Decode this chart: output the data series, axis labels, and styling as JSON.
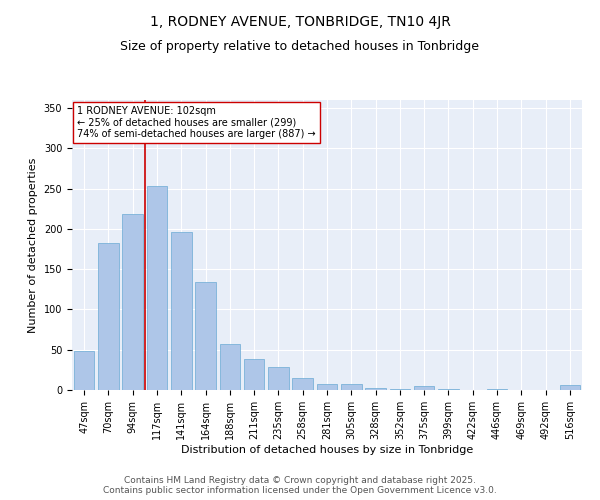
{
  "title": "1, RODNEY AVENUE, TONBRIDGE, TN10 4JR",
  "subtitle": "Size of property relative to detached houses in Tonbridge",
  "xlabel": "Distribution of detached houses by size in Tonbridge",
  "ylabel": "Number of detached properties",
  "categories": [
    "47sqm",
    "70sqm",
    "94sqm",
    "117sqm",
    "141sqm",
    "164sqm",
    "188sqm",
    "211sqm",
    "235sqm",
    "258sqm",
    "281sqm",
    "305sqm",
    "328sqm",
    "352sqm",
    "375sqm",
    "399sqm",
    "422sqm",
    "446sqm",
    "469sqm",
    "492sqm",
    "516sqm"
  ],
  "values": [
    48,
    183,
    218,
    253,
    196,
    134,
    57,
    39,
    28,
    15,
    8,
    8,
    3,
    1,
    5,
    1,
    0,
    1,
    0,
    0,
    6
  ],
  "bar_color": "#aec6e8",
  "bar_edge_color": "#6aaad4",
  "property_line_x": 2.5,
  "property_line_label": "1 RODNEY AVENUE: 102sqm",
  "annotation_line1": "← 25% of detached houses are smaller (299)",
  "annotation_line2": "74% of semi-detached houses are larger (887) →",
  "vline_color": "#cc0000",
  "ylim": [
    0,
    360
  ],
  "yticks": [
    0,
    50,
    100,
    150,
    200,
    250,
    300,
    350
  ],
  "background_color": "#e8eef8",
  "footer_line1": "Contains HM Land Registry data © Crown copyright and database right 2025.",
  "footer_line2": "Contains public sector information licensed under the Open Government Licence v3.0.",
  "title_fontsize": 10,
  "subtitle_fontsize": 9,
  "axis_label_fontsize": 8,
  "tick_fontsize": 7,
  "footer_fontsize": 6.5,
  "annot_fontsize": 7
}
